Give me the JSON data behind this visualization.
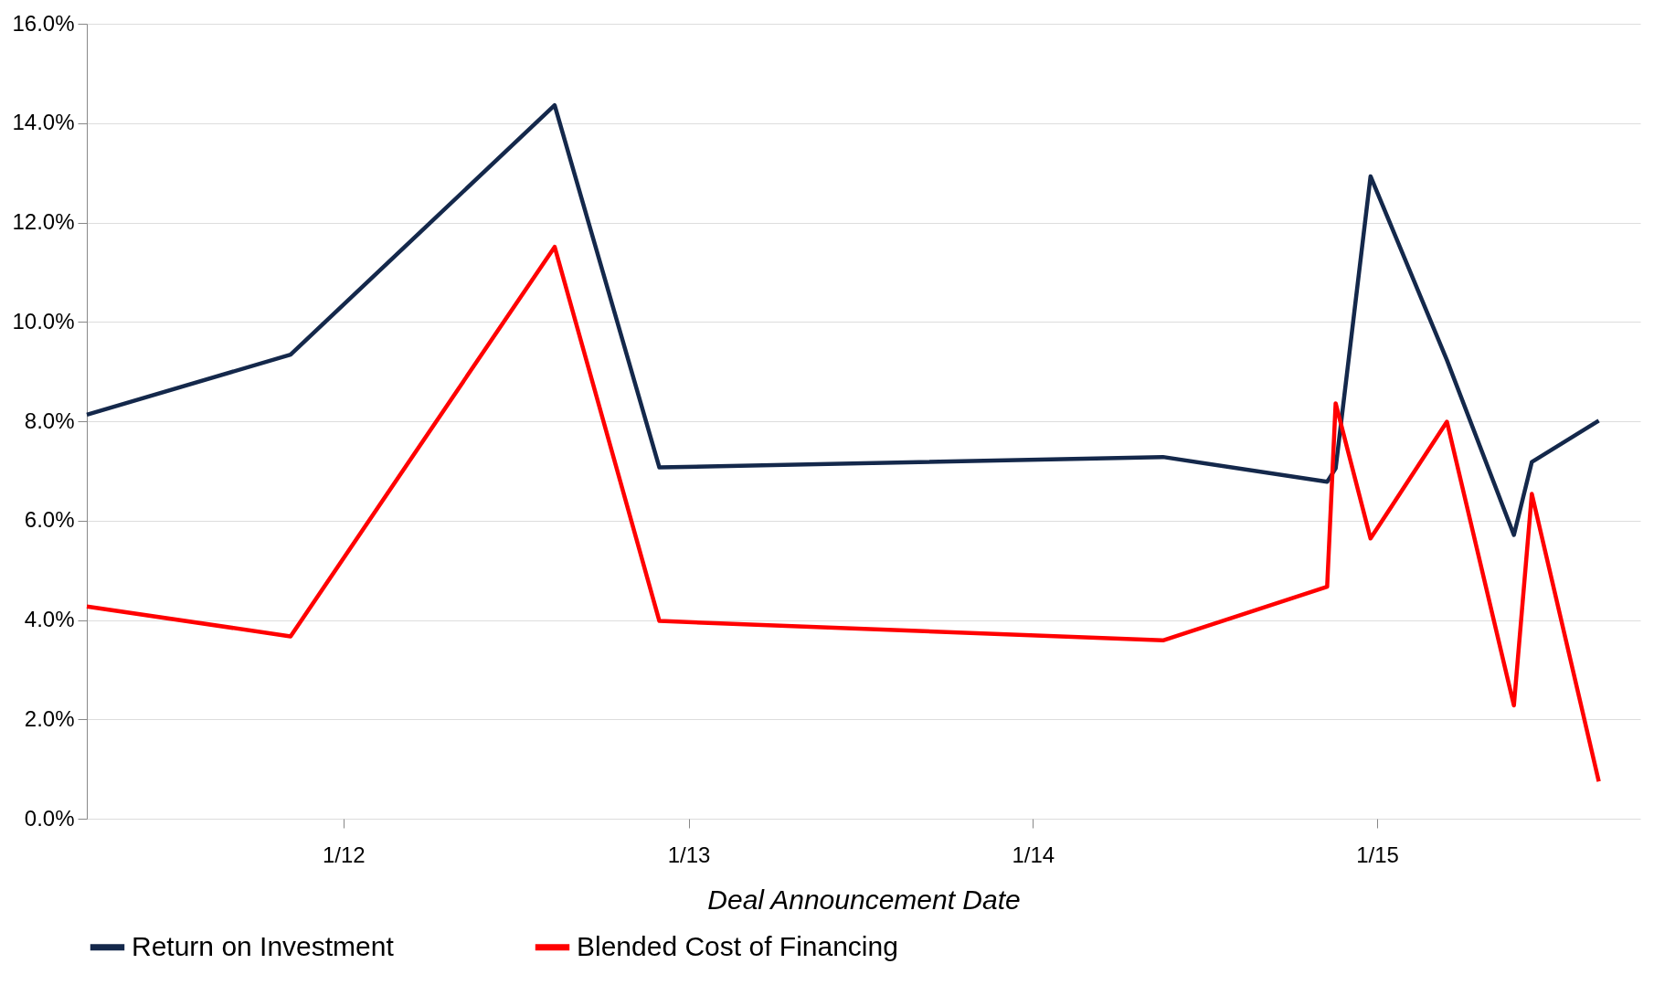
{
  "chart_data": {
    "type": "line",
    "xlabel": "Deal Announcement Date",
    "x": [
      "2011-04-04",
      "2011-11-06",
      "2012-08-12",
      "2012-12-01",
      "2014-05-19",
      "2014-11-09",
      "2014-11-18",
      "2014-12-25",
      "2015-03-16",
      "2015-05-26",
      "2015-06-14",
      "2015-08-24"
    ],
    "series": [
      {
        "name": "Return on Investment",
        "color": "#14284b",
        "values": [
          8.13,
          9.34,
          14.36,
          7.07,
          7.28,
          6.78,
          7.05,
          12.93,
          9.23,
          5.71,
          7.18,
          8.01
        ]
      },
      {
        "name": "Blended Cost of Financing",
        "color": "#ff0000",
        "values": [
          4.27,
          3.67,
          11.51,
          3.98,
          3.59,
          4.67,
          8.36,
          5.64,
          7.99,
          2.28,
          6.54,
          0.75
        ]
      }
    ],
    "xlim": [
      "2011-04-04",
      "2015-10-07"
    ],
    "xticks": [
      {
        "value": "2012-01-01",
        "label": "1/12"
      },
      {
        "value": "2013-01-01",
        "label": "1/13"
      },
      {
        "value": "2014-01-01",
        "label": "1/14"
      },
      {
        "value": "2015-01-01",
        "label": "1/15"
      }
    ],
    "ylim": [
      0,
      16
    ],
    "yticks": [
      {
        "value": 0,
        "label": "0.0%"
      },
      {
        "value": 2,
        "label": "2.0%"
      },
      {
        "value": 4,
        "label": "4.0%"
      },
      {
        "value": 6,
        "label": "6.0%"
      },
      {
        "value": 8,
        "label": "8.0%"
      },
      {
        "value": 10,
        "label": "10.0%"
      },
      {
        "value": 12,
        "label": "12.0%"
      },
      {
        "value": 14,
        "label": "14.0%"
      },
      {
        "value": 16,
        "label": "16.0%"
      }
    ],
    "grid": "y",
    "legend": "bottom",
    "marker": "none",
    "line_style": "solid"
  }
}
